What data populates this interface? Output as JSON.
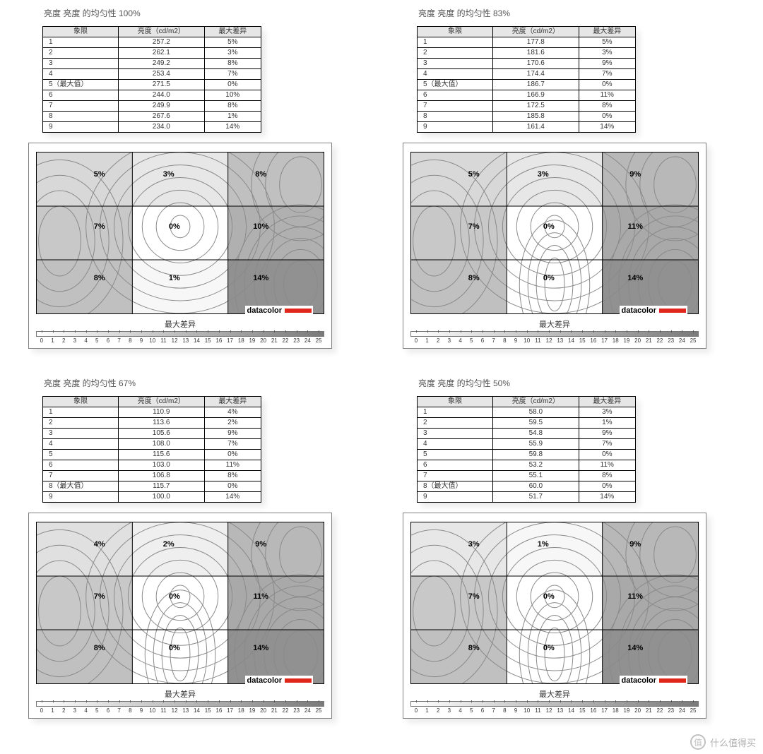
{
  "watermark": "什么值得买",
  "watermark_badge": "值",
  "shared": {
    "title_prefix": "亮度 亮度 的均匀性 ",
    "columns": [
      "象限",
      "亮度（cd/m2）",
      "最大差异"
    ],
    "max_label_suffix": "（最大值）",
    "legend_label": "最大差异",
    "scale_ticks": [
      "0",
      "1",
      "2",
      "3",
      "4",
      "5",
      "6",
      "7",
      "8",
      "9",
      "10",
      "11",
      "12",
      "13",
      "14",
      "15",
      "16",
      "17",
      "18",
      "19",
      "20",
      "21",
      "22",
      "23",
      "24",
      "25"
    ],
    "brand_text": "datacolor",
    "brand_color": "#e1261c",
    "table_header_bg": "#e6e6e6",
    "contour_line_color": "#8a8a8a",
    "zone_grid_color": "#000000"
  },
  "panels": [
    {
      "percent": "100%",
      "max_row_index": 5,
      "rows": [
        {
          "q": "1",
          "cd": "257.2",
          "d": "5%"
        },
        {
          "q": "2",
          "cd": "262.1",
          "d": "3%"
        },
        {
          "q": "3",
          "cd": "249.2",
          "d": "8%"
        },
        {
          "q": "4",
          "cd": "253.4",
          "d": "7%"
        },
        {
          "q": "5",
          "cd": "271.5",
          "d": "0%"
        },
        {
          "q": "6",
          "cd": "244.0",
          "d": "10%"
        },
        {
          "q": "7",
          "cd": "249.9",
          "d": "8%"
        },
        {
          "q": "8",
          "cd": "267.6",
          "d": "1%"
        },
        {
          "q": "9",
          "cd": "234.0",
          "d": "14%"
        }
      ],
      "zones": [
        "5%",
        "3%",
        "8%",
        "7%",
        "0%",
        "10%",
        "8%",
        "1%",
        "14%"
      ],
      "center_offset_x": 0,
      "bottom_center": false
    },
    {
      "percent": "83%",
      "max_row_index": 5,
      "rows": [
        {
          "q": "1",
          "cd": "177.8",
          "d": "5%"
        },
        {
          "q": "2",
          "cd": "181.6",
          "d": "3%"
        },
        {
          "q": "3",
          "cd": "170.6",
          "d": "9%"
        },
        {
          "q": "4",
          "cd": "174.4",
          "d": "7%"
        },
        {
          "q": "5",
          "cd": "186.7",
          "d": "0%"
        },
        {
          "q": "6",
          "cd": "166.9",
          "d": "11%"
        },
        {
          "q": "7",
          "cd": "172.5",
          "d": "8%"
        },
        {
          "q": "8",
          "cd": "185.8",
          "d": "0%"
        },
        {
          "q": "9",
          "cd": "161.4",
          "d": "14%"
        }
      ],
      "zones": [
        "5%",
        "3%",
        "9%",
        "7%",
        "0%",
        "11%",
        "8%",
        "0%",
        "14%"
      ],
      "center_offset_x": 0,
      "bottom_center": true
    },
    {
      "percent": "67%",
      "max_row_index": 8,
      "rows": [
        {
          "q": "1",
          "cd": "110.9",
          "d": "4%"
        },
        {
          "q": "2",
          "cd": "113.6",
          "d": "2%"
        },
        {
          "q": "3",
          "cd": "105.6",
          "d": "9%"
        },
        {
          "q": "4",
          "cd": "108.0",
          "d": "7%"
        },
        {
          "q": "5",
          "cd": "115.6",
          "d": "0%"
        },
        {
          "q": "6",
          "cd": "103.0",
          "d": "11%"
        },
        {
          "q": "7",
          "cd": "106.8",
          "d": "8%"
        },
        {
          "q": "8",
          "cd": "115.7",
          "d": "0%"
        },
        {
          "q": "9",
          "cd": "100.0",
          "d": "14%"
        }
      ],
      "zones": [
        "4%",
        "2%",
        "9%",
        "7%",
        "0%",
        "11%",
        "8%",
        "0%",
        "14%"
      ],
      "center_offset_x": 0,
      "bottom_center": true
    },
    {
      "percent": "50%",
      "max_row_index": 8,
      "rows": [
        {
          "q": "1",
          "cd": "58.0",
          "d": "3%"
        },
        {
          "q": "2",
          "cd": "59.5",
          "d": "1%"
        },
        {
          "q": "3",
          "cd": "54.8",
          "d": "9%"
        },
        {
          "q": "4",
          "cd": "55.9",
          "d": "7%"
        },
        {
          "q": "5",
          "cd": "59.8",
          "d": "0%"
        },
        {
          "q": "6",
          "cd": "53.2",
          "d": "11%"
        },
        {
          "q": "7",
          "cd": "55.1",
          "d": "8%"
        },
        {
          "q": "8",
          "cd": "60.0",
          "d": "0%"
        },
        {
          "q": "9",
          "cd": "51.7",
          "d": "14%"
        }
      ],
      "zones": [
        "3%",
        "1%",
        "9%",
        "7%",
        "0%",
        "11%",
        "8%",
        "0%",
        "14%"
      ],
      "center_offset_x": 0,
      "bottom_center": true
    }
  ]
}
